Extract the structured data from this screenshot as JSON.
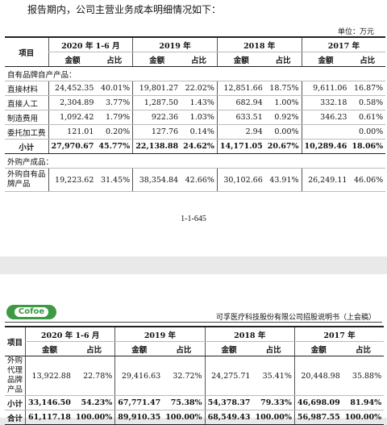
{
  "top": {
    "intro": "报告期内，公司主营业务成本明细情况如下：",
    "unit": "单位：万元",
    "page_number": "1-1-645"
  },
  "header": {
    "item": "项目",
    "periods": [
      "2020 年 1-6 月",
      "2019 年",
      "2018 年",
      "2017 年"
    ],
    "amount": "金额",
    "ratio": "占比"
  },
  "tableA": {
    "section1": "自有品牌自产产品：",
    "rows": [
      {
        "label": "直接材料",
        "vals": [
          "24,452.35",
          "40.01%",
          "19,801.27",
          "22.02%",
          "12,851.66",
          "18.75%",
          "9,611.06",
          "16.87%"
        ]
      },
      {
        "label": "直接人工",
        "vals": [
          "2,304.89",
          "3.77%",
          "1,287.50",
          "1.43%",
          "682.94",
          "1.00%",
          "332.18",
          "0.58%"
        ]
      },
      {
        "label": "制造费用",
        "vals": [
          "1,092.42",
          "1.79%",
          "922.36",
          "1.03%",
          "633.51",
          "0.92%",
          "346.23",
          "0.61%"
        ]
      },
      {
        "label": "委托加工费",
        "vals": [
          "121.01",
          "0.20%",
          "127.76",
          "0.14%",
          "2.94",
          "0.00%",
          "",
          "0.00%"
        ]
      }
    ],
    "subtotal": {
      "label": "小计",
      "vals": [
        "27,970.67",
        "45.77%",
        "22,138.88",
        "24.62%",
        "14,171.05",
        "20.67%",
        "10,289.46",
        "18.06%"
      ]
    },
    "section2": "外购产成品：",
    "outsourced": {
      "label": "外购自有品牌产品",
      "vals": [
        "19,223.62",
        "31.45%",
        "38,354.84",
        "42.66%",
        "30,102.66",
        "43.91%",
        "26,249.11",
        "46.06%"
      ]
    }
  },
  "pageB": {
    "logo_text": "Cofoe",
    "doc_title": "可孚医疗科技股份有限公司招股说明书（上会稿）"
  },
  "tableB": {
    "agent": {
      "label": "外购代理品牌产品",
      "vals": [
        "13,922.88",
        "22.78%",
        "29,416.63",
        "32.72%",
        "24,275.71",
        "35.41%",
        "20,448.98",
        "35.88%"
      ]
    },
    "subtotal": {
      "label": "小计",
      "vals": [
        "33,146.50",
        "54.23%",
        "67,771.47",
        "75.38%",
        "54,378.37",
        "79.33%",
        "46,698.09",
        "81.94%"
      ]
    },
    "total": {
      "label": "合计",
      "vals": [
        "61,117.18",
        "100.00%",
        "89,910.35",
        "100.00%",
        "68,549.43",
        "100.00%",
        "56,987.55",
        "100.00%"
      ]
    }
  }
}
